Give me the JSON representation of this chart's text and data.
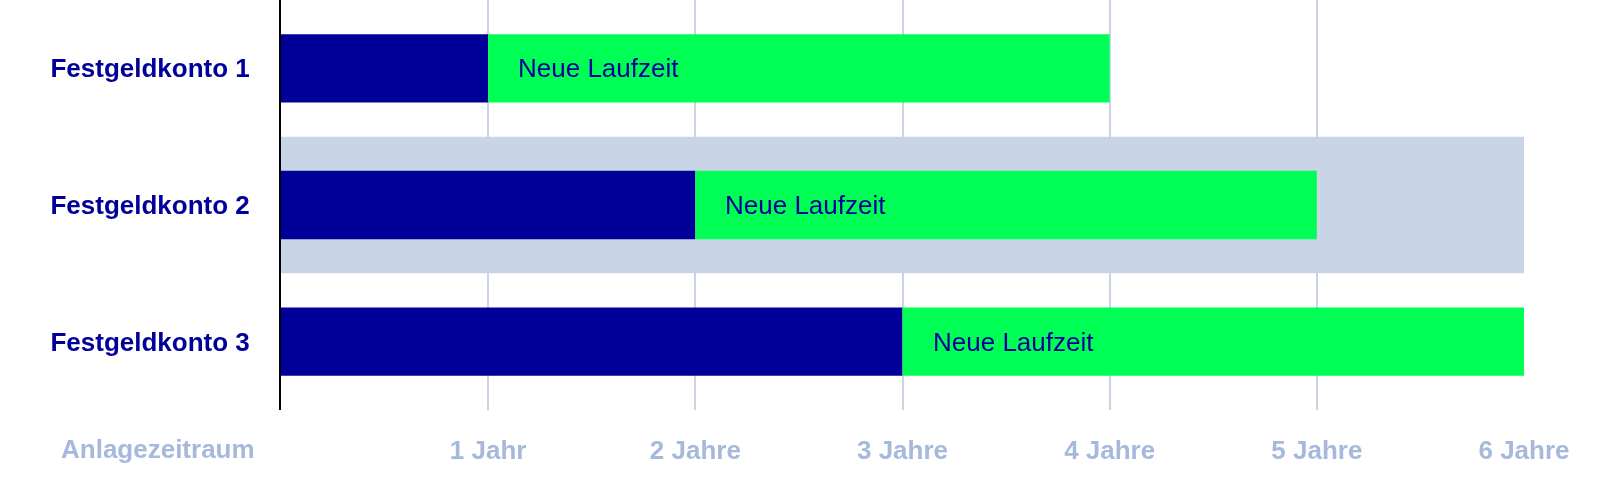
{
  "chart_data": {
    "type": "bar",
    "orientation": "horizontal",
    "stacked": true,
    "categories": [
      "Festgeldkonto 1",
      "Festgeldkonto 2",
      "Festgeldkonto 3"
    ],
    "series": [
      {
        "color": "#000099",
        "values": [
          1,
          2,
          3
        ]
      },
      {
        "name": "Neue Laufzeit",
        "color": "#00ff55",
        "values": [
          3,
          3,
          3
        ]
      }
    ],
    "xlabel": "Anlagezeitraum",
    "xlim": [
      0,
      6
    ],
    "xticks": [
      {
        "value": 1,
        "label": "1 Jahr"
      },
      {
        "value": 2,
        "label": "2 Jahre"
      },
      {
        "value": 3,
        "label": "3 Jahre"
      },
      {
        "value": 4,
        "label": "4 Jahre"
      },
      {
        "value": 5,
        "label": "5 Jahre"
      },
      {
        "value": 6,
        "label": "6 Jahre"
      }
    ],
    "bands": [
      {
        "axis": "y",
        "from": "Festgeldkonto 2",
        "to": "Festgeldkonto 2",
        "color": "#c9d5e6"
      }
    ],
    "grid": "x"
  }
}
